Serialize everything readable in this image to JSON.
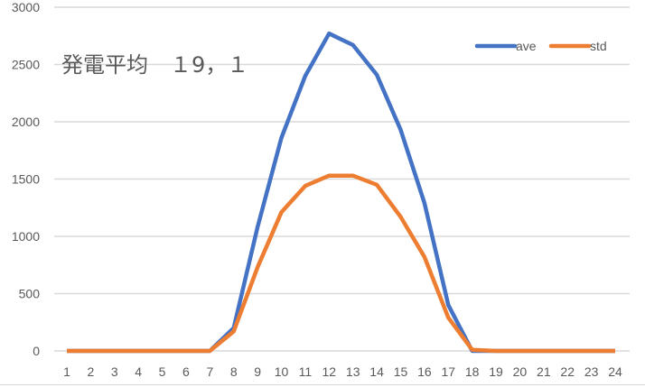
{
  "chart_data": {
    "type": "line",
    "title": "発電平均　１9，１",
    "xlabel": "",
    "ylabel": "",
    "categories": [
      "1",
      "2",
      "3",
      "4",
      "5",
      "6",
      "7",
      "8",
      "9",
      "10",
      "11",
      "12",
      "13",
      "14",
      "15",
      "16",
      "17",
      "18",
      "19",
      "20",
      "21",
      "22",
      "23",
      "24"
    ],
    "series": [
      {
        "name": "ave",
        "color": "#4472c4",
        "values": [
          0,
          0,
          0,
          0,
          0,
          0,
          0,
          200,
          1080,
          1860,
          2400,
          2770,
          2670,
          2410,
          1930,
          1290,
          400,
          0,
          0,
          0,
          0,
          0,
          0,
          0
        ]
      },
      {
        "name": "std",
        "color": "#ed7d31",
        "values": [
          0,
          0,
          0,
          0,
          0,
          0,
          0,
          170,
          730,
          1210,
          1440,
          1530,
          1530,
          1450,
          1170,
          820,
          290,
          10,
          0,
          0,
          0,
          0,
          0,
          0
        ]
      }
    ],
    "ylim": [
      0,
      3000
    ],
    "yticks": [
      0,
      500,
      1000,
      1500,
      2000,
      2500,
      3000
    ],
    "grid": true,
    "legend_position": "top-right"
  },
  "title_text": "発電平均　１9，１",
  "legend": [
    {
      "label": "ave",
      "color": "#4472c4"
    },
    {
      "label": "std",
      "color": "#ed7d31"
    }
  ]
}
